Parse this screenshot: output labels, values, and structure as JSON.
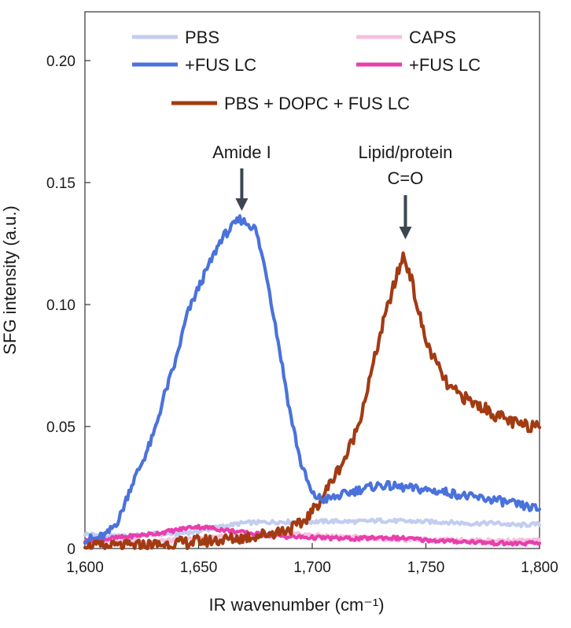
{
  "chart_data": {
    "type": "line",
    "title": "",
    "xlabel": "IR wavenumber (cm⁻¹)",
    "ylabel": "SFG intensity (a.u.)",
    "xlim": [
      1600,
      1800
    ],
    "ylim": [
      0,
      0.22
    ],
    "x_ticks": [
      1600,
      1650,
      1700,
      1750,
      1800
    ],
    "x_tick_labels": [
      "1,600",
      "1,650",
      "1,700",
      "1,750",
      "1,800"
    ],
    "y_ticks": [
      0,
      0.05,
      0.1,
      0.15,
      0.2
    ],
    "y_tick_labels": [
      "0",
      "0.05",
      "0.10",
      "0.15",
      "0.20"
    ],
    "grid": false,
    "legend_position": "top",
    "series": [
      {
        "name": "PBS",
        "color": "#c3cdf0",
        "x": [
          1600,
          1610,
          1620,
          1630,
          1640,
          1650,
          1660,
          1670,
          1680,
          1690,
          1700,
          1710,
          1720,
          1730,
          1740,
          1750,
          1760,
          1770,
          1780,
          1790,
          1800
        ],
        "y": [
          0.006,
          0.005,
          0.005,
          0.006,
          0.006,
          0.007,
          0.009,
          0.0105,
          0.0108,
          0.011,
          0.011,
          0.0112,
          0.011,
          0.0115,
          0.0112,
          0.011,
          0.0108,
          0.0102,
          0.0105,
          0.0095,
          0.01
        ]
      },
      {
        "name": "+FUS LC",
        "color": "#4a72dc",
        "x": [
          1600,
          1605,
          1610,
          1615,
          1620,
          1625,
          1630,
          1635,
          1640,
          1645,
          1650,
          1655,
          1660,
          1665,
          1668,
          1672,
          1675,
          1680,
          1685,
          1690,
          1695,
          1700,
          1705,
          1710,
          1720,
          1730,
          1740,
          1750,
          1760,
          1770,
          1780,
          1790,
          1800
        ],
        "y": [
          0.004,
          0.004,
          0.006,
          0.012,
          0.025,
          0.035,
          0.046,
          0.063,
          0.077,
          0.096,
          0.107,
          0.117,
          0.127,
          0.132,
          0.135,
          0.133,
          0.131,
          0.112,
          0.085,
          0.057,
          0.035,
          0.022,
          0.02,
          0.021,
          0.024,
          0.026,
          0.025,
          0.024,
          0.023,
          0.021,
          0.02,
          0.018,
          0.016
        ]
      },
      {
        "name": "CAPS",
        "color": "#f7c0dc",
        "x": [
          1600,
          1610,
          1620,
          1630,
          1640,
          1650,
          1660,
          1670,
          1680,
          1690,
          1700,
          1710,
          1720,
          1730,
          1740,
          1750,
          1760,
          1770,
          1780,
          1790,
          1800
        ],
        "y": [
          0.0035,
          0.0032,
          0.003,
          0.003,
          0.0035,
          0.004,
          0.0048,
          0.005,
          0.0055,
          0.006,
          0.0055,
          0.005,
          0.0048,
          0.004,
          0.0035,
          0.0038,
          0.0036,
          0.0034,
          0.0033,
          0.0032,
          0.0033
        ]
      },
      {
        "name": "+FUS LC",
        "color": "#e93eae",
        "x": [
          1600,
          1610,
          1620,
          1630,
          1640,
          1648,
          1655,
          1660,
          1670,
          1680,
          1690,
          1700,
          1710,
          1720,
          1730,
          1740,
          1750,
          1760,
          1770,
          1780,
          1790,
          1800
        ],
        "y": [
          0.003,
          0.004,
          0.005,
          0.006,
          0.0075,
          0.009,
          0.0085,
          0.0078,
          0.0065,
          0.0055,
          0.0048,
          0.0045,
          0.0042,
          0.004,
          0.0045,
          0.0042,
          0.0035,
          0.003,
          0.0028,
          0.0022,
          0.002,
          0.0022
        ]
      },
      {
        "name": "PBS + DOPC + FUS LC",
        "color": "#a23b12",
        "x": [
          1600,
          1610,
          1620,
          1630,
          1640,
          1650,
          1660,
          1670,
          1680,
          1690,
          1695,
          1700,
          1705,
          1710,
          1715,
          1720,
          1725,
          1730,
          1735,
          1740,
          1743,
          1746,
          1750,
          1755,
          1760,
          1765,
          1770,
          1775,
          1780,
          1785,
          1790,
          1795,
          1800
        ],
        "y": [
          0.001,
          0.0008,
          0.001,
          0.0015,
          0.002,
          0.003,
          0.0035,
          0.0045,
          0.006,
          0.008,
          0.01,
          0.015,
          0.022,
          0.03,
          0.038,
          0.05,
          0.068,
          0.088,
          0.105,
          0.12,
          0.113,
          0.1,
          0.085,
          0.075,
          0.066,
          0.063,
          0.06,
          0.058,
          0.055,
          0.053,
          0.051,
          0.05,
          0.052
        ]
      }
    ],
    "annotations": [
      {
        "text": "Amide I",
        "x": 1669,
        "y": 0.139
      },
      {
        "text": "Lipid/protein",
        "text2": "C=O",
        "x": 1741,
        "y": 0.128
      }
    ]
  }
}
